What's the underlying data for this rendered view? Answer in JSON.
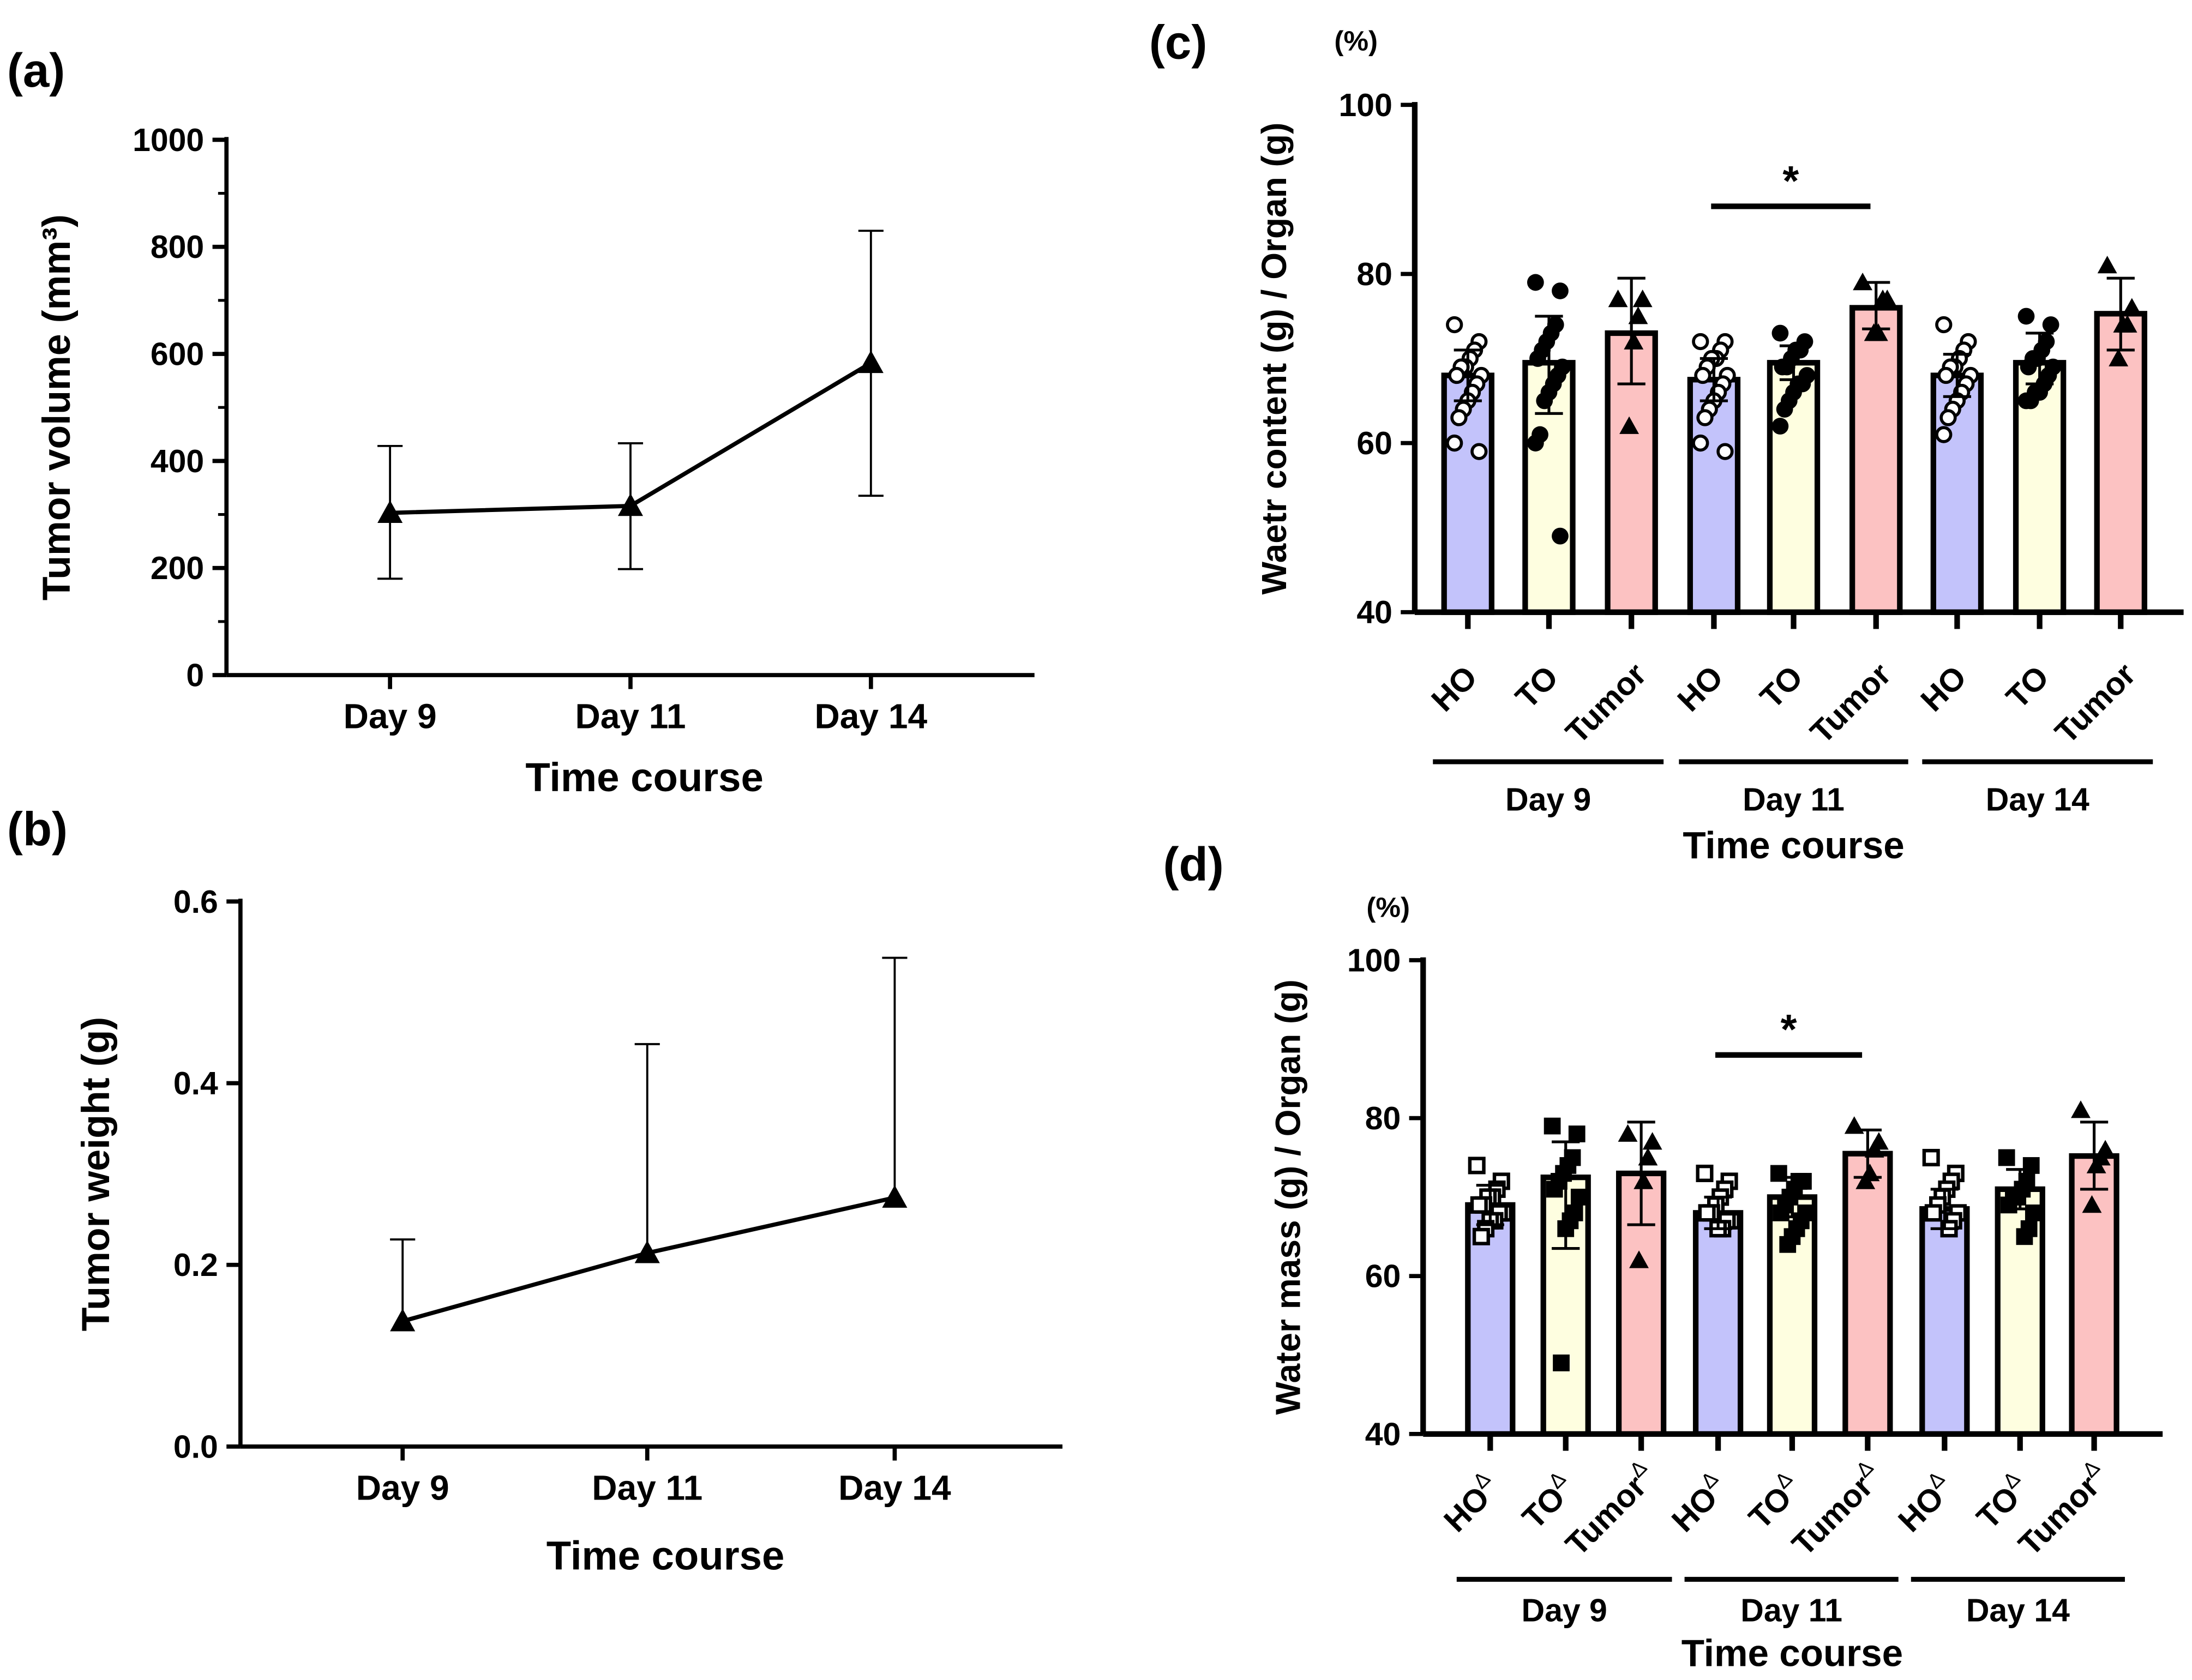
{
  "chart_data": [
    {
      "panel": "(a)",
      "type": "line",
      "categories": [
        "Day 9",
        "Day 11",
        "Day 14"
      ],
      "values": [
        303,
        316,
        583
      ],
      "error_low": [
        180,
        198,
        335
      ],
      "error_high": [
        428,
        433,
        830
      ],
      "xlabel": "Time course",
      "ylabel": "Tumor volume (mm³)",
      "ylim": [
        0,
        1000
      ],
      "yticks": [
        0,
        200,
        400,
        600,
        800,
        1000
      ],
      "marker": "triangle"
    },
    {
      "panel": "(b)",
      "type": "line",
      "categories": [
        "Day 9",
        "Day 11",
        "Day 14"
      ],
      "values": [
        0.138,
        0.213,
        0.274
      ],
      "error_high": [
        0.228,
        0.443,
        0.538
      ],
      "xlabel": "Time course",
      "ylabel": "Tumor weight (g)",
      "ylim": [
        0,
        0.6
      ],
      "yticks": [
        "0.0",
        "0.2",
        "0.4",
        "0.6"
      ],
      "marker": "triangle"
    },
    {
      "panel": "(c)",
      "type": "bar",
      "unit": "(%)",
      "categories": [
        "HO",
        "TO",
        "Tumor",
        "HO",
        "TO",
        "Tumor",
        "HO",
        "TO",
        "Tumor"
      ],
      "groups": [
        "Day 9",
        "Day 11",
        "Day 14"
      ],
      "values": [
        68,
        69.5,
        73,
        67.5,
        69.5,
        76,
        68,
        69.5,
        75.3
      ],
      "error_low": [
        65,
        63.5,
        67,
        65,
        67.5,
        73.5,
        65.5,
        67,
        71
      ],
      "error_high": [
        71,
        75,
        79.5,
        70,
        71.5,
        79,
        70.5,
        73,
        79.5
      ],
      "points": [
        [
          74,
          72,
          71,
          70,
          69,
          69,
          68,
          68,
          67,
          66,
          65,
          64,
          63,
          60,
          59
        ],
        [
          79,
          78,
          74,
          73,
          72,
          71,
          70,
          69,
          68,
          67,
          66,
          65,
          61,
          60,
          49
        ],
        [
          77,
          77,
          75,
          72,
          62
        ],
        [
          72,
          72,
          71,
          70,
          70,
          69,
          68,
          68,
          67,
          66,
          65,
          64,
          63,
          60,
          59
        ],
        [
          73,
          72,
          71,
          71,
          70,
          69,
          69,
          68,
          67,
          67,
          66,
          65,
          64,
          62
        ],
        [
          79,
          77,
          77,
          73,
          73
        ],
        [
          74,
          72,
          71,
          70,
          69,
          69,
          68,
          68,
          67,
          66,
          65,
          64,
          63,
          61
        ],
        [
          75,
          74,
          72,
          71,
          70,
          70,
          69,
          69,
          68,
          67,
          66,
          66,
          65,
          65
        ],
        [
          81,
          76,
          74,
          74,
          70
        ]
      ],
      "markers": [
        "open-circle",
        "circle",
        "triangle",
        "open-circle",
        "circle",
        "triangle",
        "open-circle",
        "circle",
        "triangle"
      ],
      "colors": [
        "#c3c3fb",
        "#fefee0",
        "#fcc2c2",
        "#c3c3fb",
        "#fefee0",
        "#fcc2c2",
        "#c3c3fb",
        "#fefee0",
        "#fcc2c2"
      ],
      "significance": {
        "from": 3,
        "to": 5,
        "level": 88,
        "label": "*"
      },
      "xlabel": "Time course",
      "ylabel": "Waetr content (g) / Organ (g)",
      "ylim": [
        40,
        100
      ],
      "yticks": [
        40,
        60,
        80,
        100
      ]
    },
    {
      "panel": "(d)",
      "type": "bar",
      "unit": "(%)",
      "categories": [
        "HO",
        "TO",
        "Tumor",
        "HO",
        "TO",
        "Tumor",
        "HO",
        "TO",
        "Tumor"
      ],
      "category_superscript": "Δ",
      "groups": [
        "Day 9",
        "Day 11",
        "Day 14"
      ],
      "values": [
        69,
        72.5,
        73,
        68,
        70,
        75.5,
        68.5,
        71,
        75.2
      ],
      "error_low": [
        66.5,
        63.5,
        66.5,
        66,
        67.5,
        72.5,
        66,
        68.5,
        71
      ],
      "error_high": [
        71.5,
        77,
        79.5,
        70,
        72.5,
        78.5,
        71,
        73.5,
        79.5
      ],
      "points": [
        [
          74,
          72,
          71,
          70,
          70,
          69,
          69,
          68,
          68,
          67,
          67,
          66,
          65
        ],
        [
          79,
          78,
          75,
          74,
          73,
          72,
          71,
          70,
          68,
          67,
          66,
          49
        ],
        [
          78,
          77,
          75,
          72,
          62
        ],
        [
          73,
          72,
          71,
          70,
          69,
          68,
          68,
          67,
          67,
          66,
          66
        ],
        [
          73,
          72,
          72,
          71,
          70,
          69,
          68,
          68,
          67,
          66,
          65,
          64
        ],
        [
          79,
          77,
          76,
          73,
          72
        ],
        [
          75,
          73,
          72,
          71,
          70,
          69,
          68,
          68,
          67,
          66
        ],
        [
          75,
          74,
          72,
          71,
          70,
          70,
          69,
          68,
          66,
          65
        ],
        [
          81,
          76,
          75,
          74,
          69
        ]
      ],
      "markers": [
        "open-square",
        "square",
        "triangle",
        "open-square",
        "square",
        "triangle",
        "open-square",
        "square",
        "triangle"
      ],
      "colors": [
        "#c3c3fb",
        "#fefee0",
        "#fcc2c2",
        "#c3c3fb",
        "#fefee0",
        "#fcc2c2",
        "#c3c3fb",
        "#fefee0",
        "#fcc2c2"
      ],
      "significance": {
        "from": 3,
        "to": 5,
        "level": 88,
        "label": "*"
      },
      "xlabel": "Time course",
      "ylabel": "Water mass (g) / Organ (g)",
      "ylim": [
        40,
        100
      ],
      "yticks": [
        40,
        60,
        80,
        100
      ]
    }
  ]
}
